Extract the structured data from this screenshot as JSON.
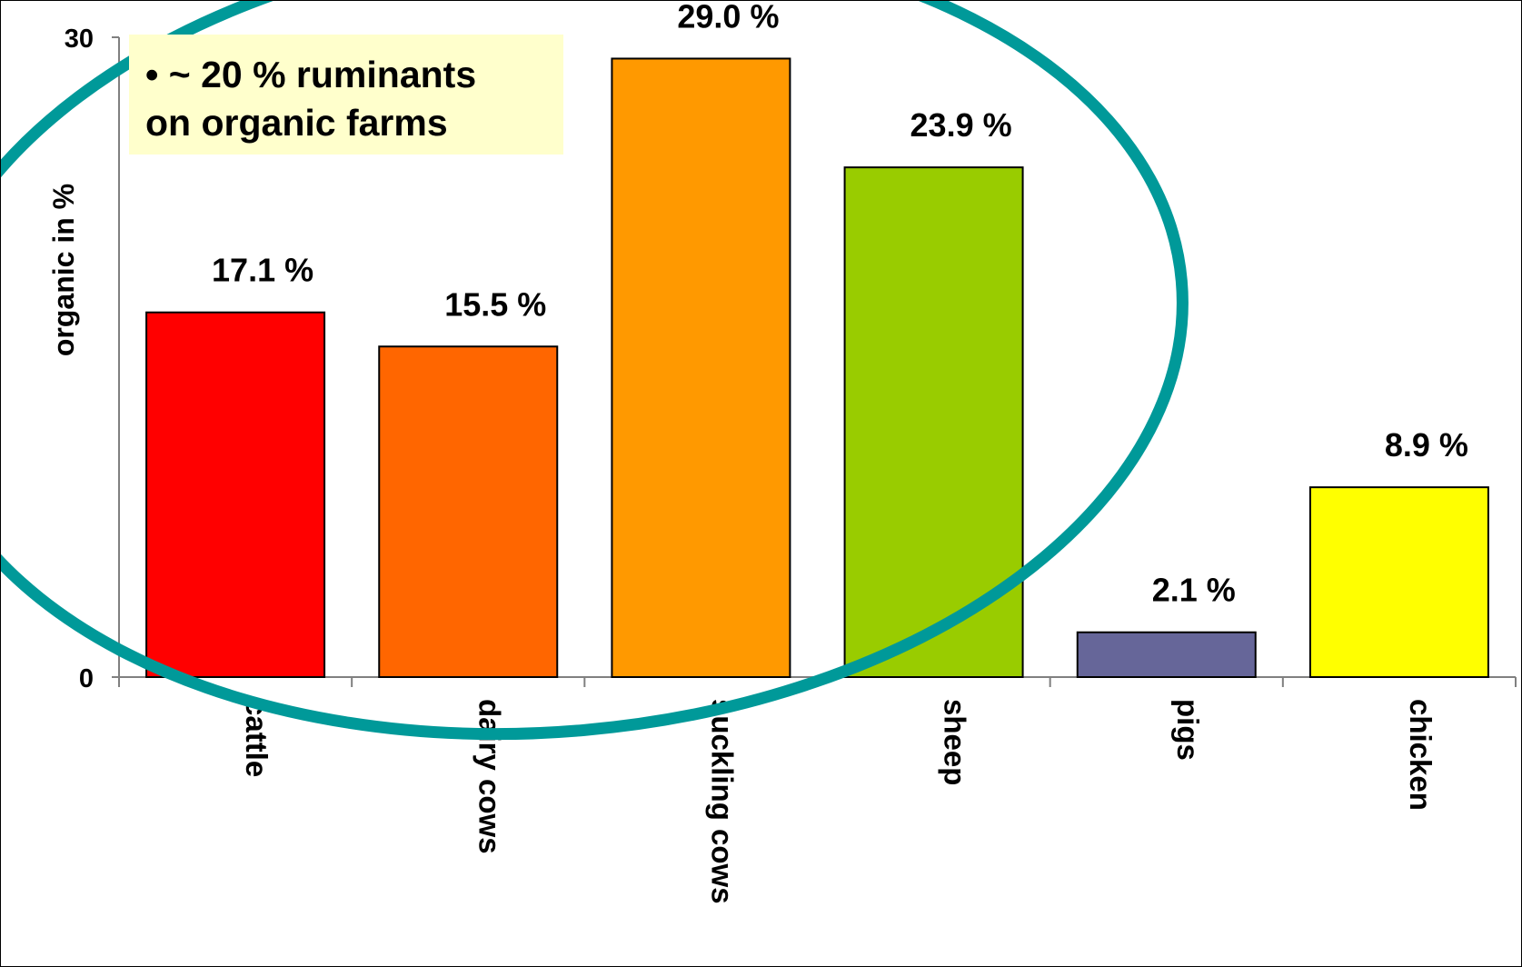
{
  "annotation": {
    "line1": "• ~ 20 % ruminants",
    "line2": "on organic farms"
  },
  "chart_data": {
    "type": "bar",
    "title": "",
    "xlabel": "",
    "ylabel": "organic in %",
    "ylim": [
      0,
      30
    ],
    "yticks": [
      "0",
      "30"
    ],
    "grid": false,
    "categories": [
      "cattle",
      "dairy cows",
      "suckling cows",
      "sheep",
      "pigs",
      "chicken"
    ],
    "values": [
      17.1,
      15.5,
      29.0,
      23.9,
      2.1,
      8.9
    ],
    "data_labels": [
      "17.1 %",
      "15.5 %",
      "29.0 %",
      "23.9 %",
      "2.1 %",
      "8.9 %"
    ],
    "colors": [
      "#ff0000",
      "#ff6600",
      "#ff9900",
      "#99cc00",
      "#666699",
      "#ffff00"
    ],
    "highlight_color": "#009999"
  }
}
